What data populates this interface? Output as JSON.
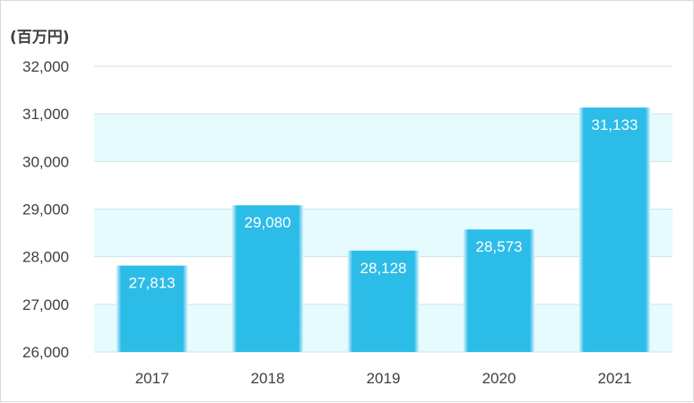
{
  "chart_data": {
    "type": "bar",
    "unit_label": "(百万円)",
    "categories": [
      "2017",
      "2018",
      "2019",
      "2020",
      "2021"
    ],
    "values": [
      27813,
      29080,
      28128,
      28573,
      31133
    ],
    "value_labels": [
      "27,813",
      "29,080",
      "28,128",
      "28,573",
      "31,133"
    ],
    "ylim": [
      26000,
      32000
    ],
    "yticks": [
      26000,
      27000,
      28000,
      29000,
      30000,
      31000,
      32000
    ],
    "ytick_labels": [
      "26,000",
      "27,000",
      "28,000",
      "29,000",
      "30,000",
      "31,000",
      "32,000"
    ],
    "grid": true,
    "legend": "none",
    "colors": {
      "bar": "#2cbce8",
      "bar_edge": "#e6f7fc",
      "band_alt": "#e5fbfd",
      "gridline": "#cfe3e8",
      "axis_text": "#404040",
      "data_label": "#ffffff"
    }
  }
}
